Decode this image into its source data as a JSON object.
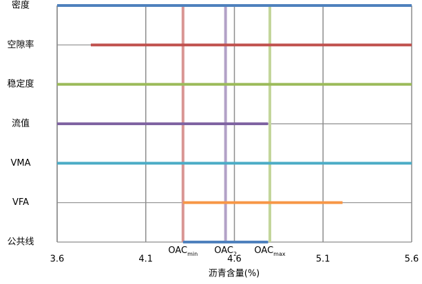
{
  "chart_data": {
    "type": "range",
    "series": [
      {
        "name": "密度",
        "color": "#4f81bd",
        "values": [
          3.6,
          5.6
        ]
      },
      {
        "name": "空隙率",
        "color": "#c0504d",
        "values": [
          3.79,
          5.6
        ]
      },
      {
        "name": "稳定度",
        "color": "#9bbb59",
        "values": [
          3.6,
          5.6
        ]
      },
      {
        "name": "流值",
        "color": "#8064a2",
        "values": [
          3.6,
          4.79
        ]
      },
      {
        "name": "VMA",
        "color": "#4bacc6",
        "values": [
          3.6,
          5.6
        ]
      },
      {
        "name": "VFA",
        "color": "#f79646",
        "values": [
          4.31,
          5.21
        ]
      },
      {
        "name": "公共线",
        "color": "#4f81bd",
        "values": [
          4.31,
          4.79
        ]
      }
    ],
    "reference_lines": [
      {
        "label": "OAC",
        "subscript": "min",
        "value": 4.31,
        "color": "#d99694"
      },
      {
        "label": "OAC",
        "subscript": "2",
        "value": 4.55,
        "color": "#b3a2c7"
      },
      {
        "label": "OAC",
        "subscript": "max",
        "value": 4.8,
        "color": "#c3d69b"
      }
    ],
    "x_label": "沥青含量(%)",
    "xlim": [
      3.6,
      5.6
    ],
    "xticks": [
      3.6,
      4.1,
      4.6,
      5.1,
      5.6
    ],
    "grid": true
  }
}
